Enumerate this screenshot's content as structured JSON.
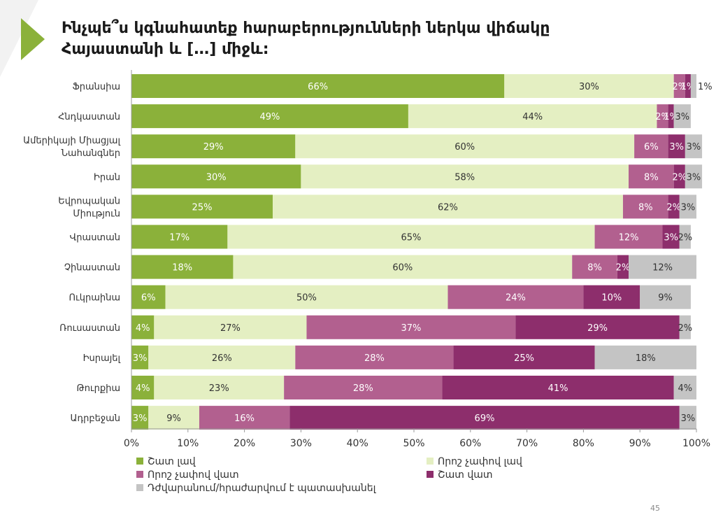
{
  "page": {
    "title_line1": "Ինչպե՞ս կգնահատեք հարաբերությունների ներկա վիճակը",
    "title_line2": "Հայաստանի և […] միջև:",
    "page_number": "45"
  },
  "colors": {
    "arrow": "#8bb13a",
    "text_on_dark": "#ffffff",
    "text_on_light": "#333333"
  },
  "chart_data": {
    "type": "bar",
    "orientation": "horizontal",
    "stacked": true,
    "categories": [
      "Ֆրանսիա",
      "Հնդկաստան",
      "Ամերիկայի Միացյալ Նահանգներ",
      "Իրան",
      "Եվրոպական Միություն",
      "Վրաստան",
      "Չինաստան",
      "Ուկրաինա",
      "Ռուսաստան",
      "Իսրայել",
      "Թուրքիա",
      "Ադրբեջան"
    ],
    "series": [
      {
        "name": "Շատ լավ",
        "color": "#8bb13a",
        "values": [
          66,
          49,
          29,
          30,
          25,
          17,
          18,
          6,
          4,
          3,
          4,
          3
        ]
      },
      {
        "name": "Որոշ չափով լավ",
        "color": "#e4efc2",
        "values": [
          30,
          44,
          60,
          58,
          62,
          65,
          60,
          50,
          27,
          26,
          23,
          9
        ]
      },
      {
        "name": "Որոշ չափով վատ",
        "color": "#b2608f",
        "values": [
          2,
          2,
          6,
          8,
          8,
          12,
          8,
          24,
          37,
          28,
          28,
          16
        ]
      },
      {
        "name": "Շատ վատ",
        "color": "#8d2e6c",
        "values": [
          1,
          1,
          3,
          2,
          2,
          3,
          2,
          10,
          29,
          25,
          41,
          69
        ]
      },
      {
        "name": "Դժվարանում/հրաժարվում է պատասխանել",
        "color": "#c4c4c4",
        "values": [
          1,
          3,
          3,
          3,
          3,
          2,
          12,
          9,
          2,
          18,
          4,
          3
        ]
      }
    ],
    "xlim": [
      0,
      100
    ],
    "xticks": [
      "0%",
      "10%",
      "20%",
      "30%",
      "40%",
      "50%",
      "60%",
      "70%",
      "80%",
      "90%",
      "100%"
    ],
    "legend_position": "bottom",
    "grid": false
  }
}
